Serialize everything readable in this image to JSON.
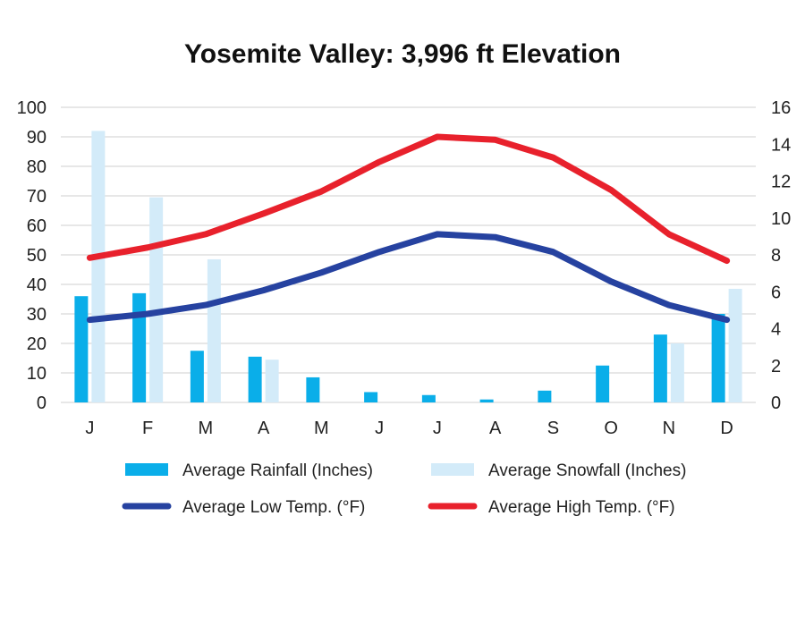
{
  "chart_data": {
    "type": "bar",
    "title": "Yosemite Valley: 3,996 ft Elevation",
    "categories": [
      "J",
      "F",
      "M",
      "A",
      "M",
      "J",
      "J",
      "A",
      "S",
      "O",
      "N",
      "D"
    ],
    "y_left": {
      "range": [
        0,
        100
      ],
      "ticks": [
        "0",
        "10",
        "20",
        "30",
        "40",
        "50",
        "60",
        "70",
        "80",
        "90",
        "100"
      ]
    },
    "y_right": {
      "range": [
        0,
        16
      ],
      "ticks": [
        "0",
        "2",
        "4",
        "6",
        "8",
        "10",
        "12",
        "14",
        "16"
      ]
    },
    "grid": true,
    "legend_position": "bottom",
    "series": [
      {
        "name": "Average Rainfall (Inches)",
        "type": "bar",
        "axis": "left",
        "color": "#0aaee9",
        "values": [
          36,
          37,
          17.5,
          15.5,
          8.5,
          3.5,
          2.5,
          1,
          4,
          12.5,
          23,
          30
        ]
      },
      {
        "name": "Average Snowfall (Inches)",
        "type": "bar",
        "axis": "left",
        "color": "#d3ebf9",
        "values": [
          92,
          69.5,
          48.5,
          14.5,
          0,
          0,
          0,
          0,
          0,
          0,
          20,
          38.5
        ]
      },
      {
        "name": "Average Low Temp. (°F)",
        "type": "line",
        "axis": "left",
        "color": "#2642a0",
        "values": [
          28,
          30,
          33,
          38,
          44,
          51,
          57,
          56,
          51,
          41,
          33,
          28
        ]
      },
      {
        "name": "Average High Temp. (°F)",
        "type": "line",
        "axis": "left",
        "color": "#e8212c",
        "values": [
          49,
          52.5,
          57,
          64,
          71.5,
          81.5,
          90,
          89,
          83,
          72,
          57,
          48
        ]
      }
    ]
  }
}
